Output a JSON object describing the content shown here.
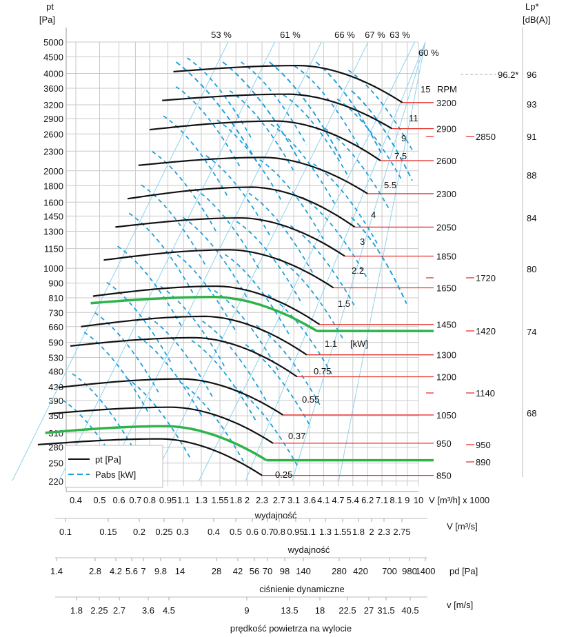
{
  "chart_data": {
    "type": "line",
    "title": "",
    "ylabel": "pt [Pa]",
    "ylabel_lines": [
      "pt",
      "[Pa]"
    ],
    "xlabel": "wydajność",
    "x_unit_label": "V [m³/h] x 1000",
    "x_scale": "log",
    "y_scale": "log",
    "xlim": [
      0.3,
      10
    ],
    "ylim": [
      220,
      5000
    ],
    "grid": true,
    "y_ticks": [
      5000,
      4500,
      4000,
      3600,
      3200,
      2900,
      2600,
      2300,
      2000,
      1800,
      1600,
      1450,
      1300,
      1150,
      1000,
      900,
      810,
      730,
      660,
      590,
      530,
      480,
      430,
      390,
      350,
      310,
      280,
      250,
      220
    ],
    "x_ticks": [
      0.4,
      0.5,
      0.6,
      0.7,
      0.8,
      0.95,
      1.1,
      1.3,
      1.55,
      1.8,
      2,
      2.3,
      2.7,
      3.1,
      3.6,
      4.1,
      4.7,
      5.4,
      6.2,
      7.1,
      8.1,
      9,
      10
    ],
    "legend": {
      "position": "bottom-left",
      "entries": [
        {
          "label": "pt [Pa]",
          "style": "solid",
          "color": "#111111"
        },
        {
          "label": "Pabs [kW]",
          "style": "dashed",
          "color": "#1aa0dc"
        }
      ]
    },
    "efficiency_labels": [
      "53 %",
      "61 %",
      "66 %",
      "67 %",
      "63 %",
      "60 %"
    ],
    "rpm_header": "RPM",
    "rpm_curves": [
      {
        "rpm": 3200,
        "x_start": 1.0,
        "peak": 4230,
        "x_end": 8.6,
        "pt_start": 4050,
        "pt_end": 3250
      },
      {
        "rpm": 2900,
        "x_start": 0.9,
        "peak": 3450,
        "x_end": 7.8,
        "pt_start": 3300,
        "pt_end": 2700
      },
      {
        "rpm": 2600,
        "x_start": 0.8,
        "peak": 2850,
        "x_end": 7.0,
        "pt_start": 2680,
        "pt_end": 2150
      },
      {
        "rpm": 2300,
        "x_start": 0.72,
        "peak": 2200,
        "x_end": 6.2,
        "pt_start": 2080,
        "pt_end": 1700
      },
      {
        "rpm": 2050,
        "x_start": 0.65,
        "peak": 1780,
        "x_end": 5.5,
        "pt_start": 1640,
        "pt_end": 1340
      },
      {
        "rpm": 1850,
        "x_start": 0.58,
        "peak": 1430,
        "x_end": 5.0,
        "pt_start": 1340,
        "pt_end": 1090
      },
      {
        "rpm": 1650,
        "x_start": 0.52,
        "peak": 1140,
        "x_end": 4.5,
        "pt_start": 1060,
        "pt_end": 870
      },
      {
        "rpm": 1450,
        "x_start": 0.47,
        "peak": 880,
        "x_end": 3.95,
        "pt_start": 820,
        "pt_end": 670
      },
      {
        "rpm": 1300,
        "x_start": 0.42,
        "peak": 710,
        "x_end": 3.5,
        "pt_start": 660,
        "pt_end": 540
      },
      {
        "rpm": 1200,
        "x_start": 0.38,
        "peak": 610,
        "x_end": 3.2,
        "pt_start": 575,
        "pt_end": 462
      },
      {
        "rpm": 1050,
        "x_start": 0.34,
        "peak": 455,
        "x_end": 2.8,
        "pt_start": 428,
        "pt_end": 352
      },
      {
        "rpm": 950,
        "x_start": 0.31,
        "peak": 372,
        "x_end": 2.55,
        "pt_start": 355,
        "pt_end": 288
      },
      {
        "rpm": 850,
        "x_start": 0.28,
        "peak": 297,
        "x_end": 2.3,
        "pt_start": 285,
        "pt_end": 229
      }
    ],
    "highlight_curves": [
      {
        "rpm": 1420,
        "x_start": 0.46,
        "peak": 815,
        "x_end": 3.85,
        "pt_start": 780,
        "pt_end": 640,
        "color": "#2db34a"
      },
      {
        "rpm": 890,
        "x_start": 0.3,
        "peak": 325,
        "x_end": 2.4,
        "pt_start": 310,
        "pt_end": 255,
        "color": "#2db34a"
      }
    ],
    "power_labels": [
      "15",
      "11",
      "9",
      "7.5",
      "5.5",
      "4",
      "3",
      "2.2",
      "1.5",
      "1.1",
      "[kW]",
      "0.75",
      "0.55",
      "0.37",
      "0.25"
    ],
    "extra_rpm_markers": [
      "2850",
      "1720",
      "1420",
      "1140",
      "950",
      "890"
    ],
    "noise_axis": {
      "label_lines": [
        "Lp*",
        "[dB(A)]"
      ],
      "ticks": [
        "96",
        "93",
        "91",
        "88",
        "84",
        "80",
        "74",
        "68"
      ],
      "reference": "96.2*"
    },
    "secondary_axes": [
      {
        "name": "flow-m3s",
        "unit": "V  [m³/s]",
        "caption": "wydajność",
        "ticks": [
          "0.1",
          "0.15",
          "0.2",
          "0.25",
          "0.3",
          "0.4",
          "0.5",
          "0.6",
          "0.7",
          "0.8",
          "0.95",
          "1.1",
          "1.3",
          "1.55",
          "1.8",
          "2",
          "2.3",
          "2.75"
        ]
      },
      {
        "name": "dynamic-pressure",
        "unit": "pd  [Pa]",
        "caption": "ciśnienie dynamiczne",
        "ticks": [
          "1.4",
          "2.8",
          "4.2",
          "5.6",
          "7",
          "9.8",
          "14",
          "28",
          "42",
          "56",
          "70",
          "98",
          "140",
          "280",
          "420",
          "700",
          "980",
          "1400"
        ]
      },
      {
        "name": "outlet-velocity",
        "unit": "v  [m/s]",
        "caption": "prędkość powietrza na wylocie",
        "ticks": [
          "1.8",
          "2.25",
          "2.7",
          "3.6",
          "4.5",
          "9",
          "13.5",
          "18",
          "22.5",
          "27",
          "31.5",
          "40.5"
        ]
      }
    ],
    "colors": {
      "pt": "#111111",
      "pabs": "#1aa0dc",
      "rpm_line": "#e8322e",
      "highlight": "#2db34a",
      "grid": "#c8c8c8",
      "eff_line": "#8ed2ee"
    }
  }
}
